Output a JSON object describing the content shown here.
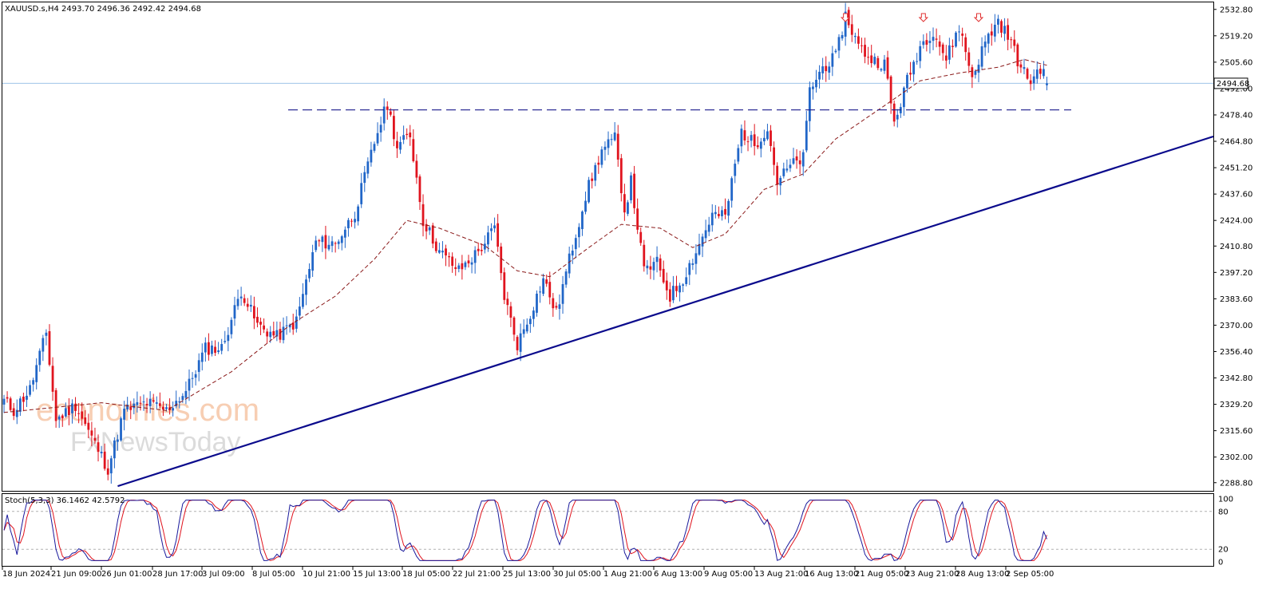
{
  "header": {
    "symbol_line": "XAUUSD.s,H4  2493.70 2496.36 2492.42 2494.68"
  },
  "watermark": {
    "line1": "economies.com",
    "line2": "FxNewsToday"
  },
  "colors": {
    "bull": "#2166c8",
    "bear": "#e0141e",
    "ma": "#8b1a1a",
    "trend": "#0a0a8c",
    "resistance": "#1a1a8c",
    "price_line": "#9fc5e8",
    "stoch_main": "#1a1a9c",
    "stoch_signal": "#e0141e",
    "arrow": "#e03030"
  },
  "stoch_label": "Stoch(5,3,3) 36.1462 42.5792",
  "current_price_label": "2494.68",
  "price_axis_labels": [
    "2532.80",
    "2519.20",
    "2505.60",
    "2492.00",
    "2478.40",
    "2464.80",
    "2451.20",
    "2437.60",
    "2424.00",
    "2410.80",
    "2397.20",
    "2383.60",
    "2370.00",
    "2356.40",
    "2342.80",
    "2329.20",
    "2315.60",
    "2302.00",
    "2288.80"
  ],
  "stoch_axis_labels": [
    "100",
    "80",
    "20",
    "0"
  ],
  "time_axis_labels": [
    "18 Jun 2024",
    "21 Jun 09:00",
    "26 Jun 01:00",
    "28 Jun 17:00",
    "3 Jul 09:00",
    "8 Jul 05:00",
    "10 Jul 21:00",
    "15 Jul 13:00",
    "18 Jul 05:00",
    "22 Jul 21:00",
    "25 Jul 13:00",
    "30 Jul 05:00",
    "1 Aug 21:00",
    "6 Aug 13:00",
    "9 Aug 05:00",
    "13 Aug 21:00",
    "16 Aug 13:00",
    "21 Aug 05:00",
    "23 Aug 21:00",
    "28 Aug 13:00",
    "2 Sep 05:00"
  ],
  "chart_data": {
    "type": "candlestick",
    "symbol": "XAUUSD.s",
    "timeframe": "H4",
    "ohlc_last": {
      "open": 2493.7,
      "high": 2496.36,
      "low": 2492.42,
      "close": 2494.68
    },
    "ylim": [
      2286.0,
      2538.0
    ],
    "x_start": "18 Jun 2024",
    "x_end": "3 Sep 2024",
    "close_path": [
      {
        "t": 0,
        "v": 2331
      },
      {
        "t": 3,
        "v": 2326
      },
      {
        "t": 8,
        "v": 2337
      },
      {
        "t": 13,
        "v": 2366
      },
      {
        "t": 16,
        "v": 2321
      },
      {
        "t": 22,
        "v": 2329
      },
      {
        "t": 27,
        "v": 2312
      },
      {
        "t": 32,
        "v": 2296
      },
      {
        "t": 37,
        "v": 2326
      },
      {
        "t": 44,
        "v": 2330
      },
      {
        "t": 50,
        "v": 2326
      },
      {
        "t": 56,
        "v": 2336
      },
      {
        "t": 62,
        "v": 2358
      },
      {
        "t": 67,
        "v": 2358
      },
      {
        "t": 73,
        "v": 2388
      },
      {
        "t": 78,
        "v": 2370
      },
      {
        "t": 84,
        "v": 2364
      },
      {
        "t": 90,
        "v": 2372
      },
      {
        "t": 96,
        "v": 2413
      },
      {
        "t": 102,
        "v": 2412
      },
      {
        "t": 108,
        "v": 2428
      },
      {
        "t": 115,
        "v": 2470
      },
      {
        "t": 118,
        "v": 2484
      },
      {
        "t": 121,
        "v": 2462
      },
      {
        "t": 125,
        "v": 2468
      },
      {
        "t": 129,
        "v": 2424
      },
      {
        "t": 134,
        "v": 2408
      },
      {
        "t": 140,
        "v": 2398
      },
      {
        "t": 146,
        "v": 2408
      },
      {
        "t": 151,
        "v": 2420
      },
      {
        "t": 154,
        "v": 2385
      },
      {
        "t": 158,
        "v": 2360
      },
      {
        "t": 162,
        "v": 2376
      },
      {
        "t": 166,
        "v": 2394
      },
      {
        "t": 170,
        "v": 2376
      },
      {
        "t": 174,
        "v": 2404
      },
      {
        "t": 179,
        "v": 2437
      },
      {
        "t": 184,
        "v": 2460
      },
      {
        "t": 188,
        "v": 2466
      },
      {
        "t": 191,
        "v": 2429
      },
      {
        "t": 193,
        "v": 2444
      },
      {
        "t": 197,
        "v": 2398
      },
      {
        "t": 201,
        "v": 2402
      },
      {
        "t": 205,
        "v": 2385
      },
      {
        "t": 209,
        "v": 2394
      },
      {
        "t": 213,
        "v": 2408
      },
      {
        "t": 218,
        "v": 2427
      },
      {
        "t": 222,
        "v": 2426
      },
      {
        "t": 227,
        "v": 2470
      },
      {
        "t": 231,
        "v": 2463
      },
      {
        "t": 235,
        "v": 2472
      },
      {
        "t": 238,
        "v": 2444
      },
      {
        "t": 242,
        "v": 2452
      },
      {
        "t": 246,
        "v": 2456
      },
      {
        "t": 248,
        "v": 2491
      },
      {
        "t": 252,
        "v": 2503
      },
      {
        "t": 256,
        "v": 2508
      },
      {
        "t": 259,
        "v": 2530
      },
      {
        "t": 263,
        "v": 2514
      },
      {
        "t": 267,
        "v": 2507
      },
      {
        "t": 271,
        "v": 2505
      },
      {
        "t": 274,
        "v": 2474
      },
      {
        "t": 278,
        "v": 2496
      },
      {
        "t": 282,
        "v": 2514
      },
      {
        "t": 286,
        "v": 2522
      },
      {
        "t": 290,
        "v": 2507
      },
      {
        "t": 294,
        "v": 2524
      },
      {
        "t": 298,
        "v": 2498
      },
      {
        "t": 302,
        "v": 2516
      },
      {
        "t": 306,
        "v": 2527
      },
      {
        "t": 310,
        "v": 2516
      },
      {
        "t": 313,
        "v": 2502
      },
      {
        "t": 316,
        "v": 2496
      },
      {
        "t": 319,
        "v": 2503
      },
      {
        "t": 321,
        "v": 2494.68
      }
    ],
    "moving_average": {
      "style": "dashed",
      "path": [
        {
          "t": 0,
          "v": 2325
        },
        {
          "t": 30,
          "v": 2330
        },
        {
          "t": 50,
          "v": 2326
        },
        {
          "t": 70,
          "v": 2346
        },
        {
          "t": 88,
          "v": 2370
        },
        {
          "t": 102,
          "v": 2385
        },
        {
          "t": 114,
          "v": 2404
        },
        {
          "t": 124,
          "v": 2424
        },
        {
          "t": 134,
          "v": 2420
        },
        {
          "t": 148,
          "v": 2411
        },
        {
          "t": 158,
          "v": 2398
        },
        {
          "t": 168,
          "v": 2395
        },
        {
          "t": 180,
          "v": 2410
        },
        {
          "t": 190,
          "v": 2422
        },
        {
          "t": 202,
          "v": 2420
        },
        {
          "t": 212,
          "v": 2410
        },
        {
          "t": 222,
          "v": 2417
        },
        {
          "t": 234,
          "v": 2440
        },
        {
          "t": 246,
          "v": 2448
        },
        {
          "t": 256,
          "v": 2466
        },
        {
          "t": 270,
          "v": 2482
        },
        {
          "t": 282,
          "v": 2496
        },
        {
          "t": 294,
          "v": 2500
        },
        {
          "t": 306,
          "v": 2503
        },
        {
          "t": 314,
          "v": 2507
        },
        {
          "t": 321,
          "v": 2504
        }
      ]
    },
    "resistance_line": {
      "value": 2481,
      "style": "dashed",
      "from_t": 86,
      "to_t": 321
    },
    "trend_line": {
      "points": [
        {
          "t": 35,
          "v": 2287
        },
        {
          "t": 374,
          "v": 2472
        }
      ]
    },
    "top_markers": [
      {
        "t": 259,
        "label": "down-arrow"
      },
      {
        "t": 283,
        "label": "down-arrow"
      },
      {
        "t": 300,
        "label": "down-arrow"
      }
    ],
    "stochastic": {
      "params": "5,3,3",
      "main": 36.1462,
      "signal": 42.5792,
      "levels": [
        20,
        80
      ],
      "ylim": [
        0,
        100
      ]
    }
  }
}
